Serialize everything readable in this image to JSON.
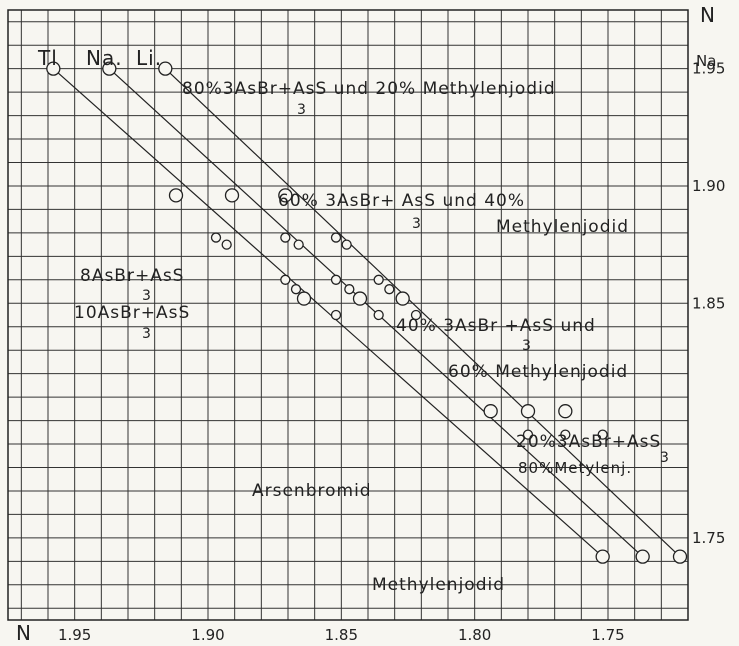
{
  "chart_data": {
    "type": "scatter",
    "title": "",
    "xlabel": "N",
    "ylabel": "N",
    "ylabel_sub": "Na",
    "x_reversed": true,
    "xlim": [
      1.975,
      1.72
    ],
    "ylim": [
      1.715,
      1.975
    ],
    "x_ticks": [
      "1.95",
      "1.90",
      "1.85",
      "1.80",
      "1.75"
    ],
    "x_tick_values": [
      1.95,
      1.9,
      1.85,
      1.8,
      1.75
    ],
    "y_ticks": [
      "1.95",
      "1.90",
      "1.85",
      "1.75"
    ],
    "y_tick_values": [
      1.95,
      1.9,
      1.85,
      1.75
    ],
    "grid": true,
    "header_labels": [
      "Tl",
      "Na.",
      "Li."
    ],
    "series": [
      {
        "name": "Tl",
        "line": [
          [
            1.958,
            1.95
          ],
          [
            1.752,
            1.742
          ]
        ],
        "points": [
          {
            "x": 1.958,
            "y": 1.95,
            "big": true
          },
          {
            "x": 1.903,
            "y": 1.876,
            "big": false
          },
          {
            "x": 1.877,
            "y": 1.851,
            "big": false
          },
          {
            "x": 1.873,
            "y": 1.847,
            "big": true
          },
          {
            "x": 1.862,
            "y": 1.836,
            "big": false
          },
          {
            "x": 1.787,
            "y": 1.762,
            "big": false
          },
          {
            "x": 1.752,
            "y": 1.742,
            "big": true
          }
        ]
      },
      {
        "name": "Na",
        "line": [
          [
            1.937,
            1.95
          ],
          [
            1.737,
            1.742
          ]
        ],
        "points": [
          {
            "x": 1.937,
            "y": 1.95,
            "big": true
          },
          {
            "x": 1.917,
            "y": 1.931,
            "big": false
          },
          {
            "x": 1.88,
            "y": 1.893,
            "big": false
          },
          {
            "x": 1.88,
            "y": 1.891,
            "big": false
          },
          {
            "x": 1.84,
            "y": 1.846,
            "big": false
          },
          {
            "x": 1.834,
            "y": 1.841,
            "big": false
          },
          {
            "x": 1.802,
            "y": 1.797,
            "big": false
          },
          {
            "x": 1.737,
            "y": 1.742,
            "big": true
          }
        ]
      }
    ],
    "points_all": [
      {
        "x": 1.958,
        "y": 1.95,
        "big": true
      },
      {
        "x": 1.937,
        "y": 1.95,
        "big": true
      },
      {
        "x": 1.916,
        "y": 1.95,
        "big": true
      },
      {
        "x": 1.912,
        "y": 1.896,
        "big": true
      },
      {
        "x": 1.891,
        "y": 1.896,
        "big": true
      },
      {
        "x": 1.871,
        "y": 1.896,
        "big": true
      },
      {
        "x": 1.897,
        "y": 1.878,
        "big": false
      },
      {
        "x": 1.893,
        "y": 1.875,
        "big": false
      },
      {
        "x": 1.871,
        "y": 1.878,
        "big": false
      },
      {
        "x": 1.866,
        "y": 1.875,
        "big": false
      },
      {
        "x": 1.852,
        "y": 1.878,
        "big": false
      },
      {
        "x": 1.848,
        "y": 1.875,
        "big": false
      },
      {
        "x": 1.871,
        "y": 1.86,
        "big": false
      },
      {
        "x": 1.867,
        "y": 1.856,
        "big": false
      },
      {
        "x": 1.864,
        "y": 1.852,
        "big": true
      },
      {
        "x": 1.852,
        "y": 1.86,
        "big": false
      },
      {
        "x": 1.847,
        "y": 1.856,
        "big": false
      },
      {
        "x": 1.843,
        "y": 1.852,
        "big": true
      },
      {
        "x": 1.836,
        "y": 1.86,
        "big": false
      },
      {
        "x": 1.832,
        "y": 1.856,
        "big": false
      },
      {
        "x": 1.827,
        "y": 1.852,
        "big": true
      },
      {
        "x": 1.852,
        "y": 1.845,
        "big": false
      },
      {
        "x": 1.836,
        "y": 1.845,
        "big": false
      },
      {
        "x": 1.822,
        "y": 1.845,
        "big": false
      },
      {
        "x": 1.794,
        "y": 1.804,
        "big": true
      },
      {
        "x": 1.78,
        "y": 1.804,
        "big": true
      },
      {
        "x": 1.766,
        "y": 1.804,
        "big": true
      },
      {
        "x": 1.78,
        "y": 1.794,
        "big": false
      },
      {
        "x": 1.766,
        "y": 1.794,
        "big": false
      },
      {
        "x": 1.752,
        "y": 1.794,
        "big": false
      },
      {
        "x": 1.752,
        "y": 1.742,
        "big": true
      },
      {
        "x": 1.737,
        "y": 1.742,
        "big": true
      },
      {
        "x": 1.723,
        "y": 1.742,
        "big": true
      }
    ],
    "lines": [
      [
        [
          1.958,
          1.95
        ],
        [
          1.752,
          1.742
        ]
      ],
      [
        [
          1.937,
          1.95
        ],
        [
          1.737,
          1.742
        ]
      ],
      [
        [
          1.916,
          1.95
        ],
        [
          1.723,
          1.742
        ]
      ]
    ],
    "annotations": {
      "a1_main": "80%3AsBr+AsS  und 20% Methylenjodid",
      "a1_sub": "3",
      "a2_main": "60% 3AsBr+ AsS  und 40%",
      "a2_sub": "3",
      "a2_line2": "Methylenjodid",
      "a3_line1": "8AsBr+AsS",
      "a3_sub1": "3",
      "a3_line2": "10AsBr+AsS",
      "a3_sub2": "3",
      "a4_main": "40% 3AsBr +AsS  und",
      "a4_sub": "3",
      "a4_line2": "60%  Methylenjodid",
      "a5_line1": "20%3AsBr+AsS",
      "a5_sub": "3",
      "a5_line2": "80%Metylenj.",
      "a6": "Arsenbromid",
      "a7": "Methylenjodid"
    }
  }
}
